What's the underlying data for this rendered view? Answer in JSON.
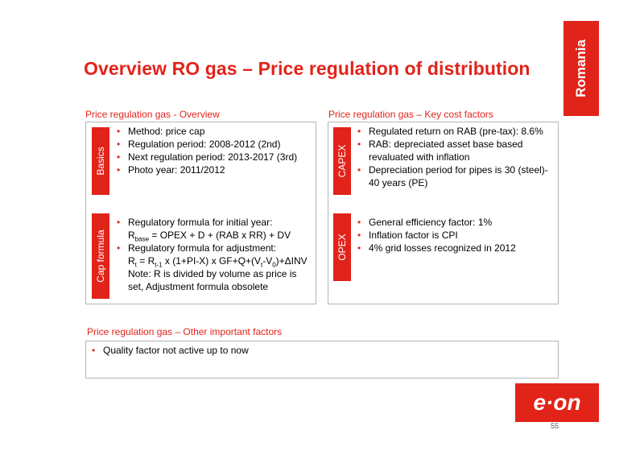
{
  "header": {
    "title": "Overview RO gas – Price regulation of distribution",
    "country_tab": "Romania"
  },
  "left_panel": {
    "heading": "Price regulation gas - Overview",
    "basics": {
      "label": "Basics",
      "items": [
        "Method: price cap",
        "Regulation period: 2008-2012 (2nd)",
        "Next regulation period: 2013-2017 (3rd)",
        "Photo year: 2011/2012"
      ]
    },
    "cap_formula": {
      "label": "Cap formula",
      "item1": "Regulatory formula for initial year:",
      "formula1": {
        "r": "R",
        "sub": "base",
        "rest": " = OPEX + D + (RAB x RR) + DV"
      },
      "item2": "Regulatory formula for adjustment:",
      "formula2": {
        "r": "R",
        "sub_t": "t",
        "eq": " = R",
        "sub_t1": "t-1",
        "mid": " x (1+PI-X) x GF+Q+(V",
        "sub_v1": "t",
        "dash": "-V",
        "sub_v0": "0",
        "end": ")+ΔINV"
      },
      "note_line1": "Note: R is divided by volume as price is",
      "note_line2": "set, Adjustment formula obsolete"
    }
  },
  "right_panel": {
    "heading": "Price regulation gas – Key cost factors",
    "capex": {
      "label": "CAPEX",
      "item1": "Regulated return on RAB (pre-tax): 8.6%",
      "item2_line1": "RAB: depreciated asset base based",
      "item2_line2": "revaluated with inflation",
      "item3_line1": "Depreciation period for pipes is 30 (steel)-",
      "item3_line2": "40 years (PE)"
    },
    "opex": {
      "label": "OPEX",
      "items": [
        "General efficiency factor:  1%",
        "Inflation factor is CPI",
        "4% grid losses recognized in 2012"
      ]
    }
  },
  "bottom_panel": {
    "heading": "Price regulation gas – Other important factors",
    "items": [
      "Quality factor not active up to now"
    ]
  },
  "footer": {
    "logo_text": "e·on",
    "page_number": "55"
  },
  "colors": {
    "accent": "#e2231a",
    "border": "#b5b5b5"
  }
}
